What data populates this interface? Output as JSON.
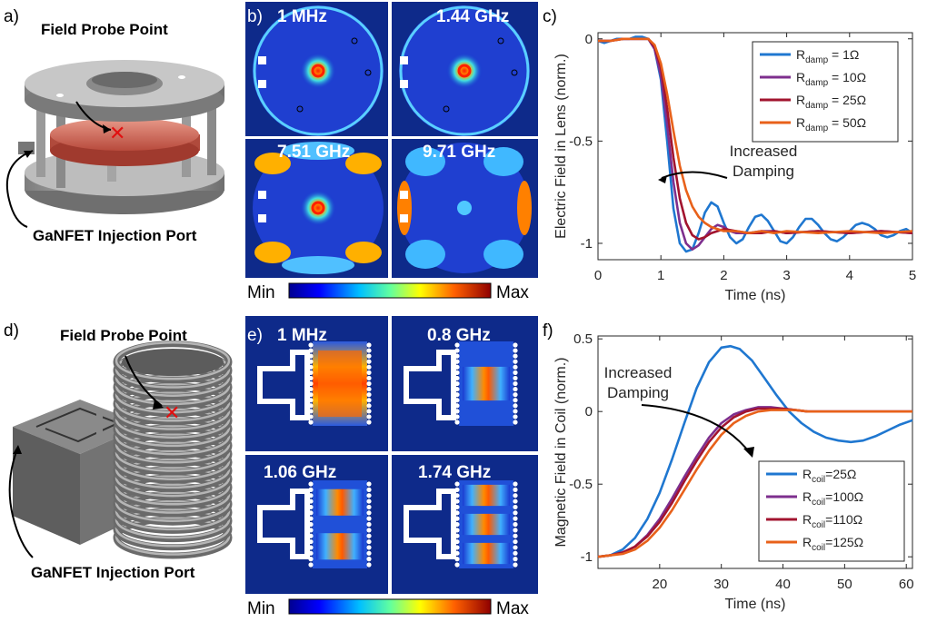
{
  "panels": {
    "a": {
      "letter": "a)",
      "probe_label": "Field Probe Point",
      "port_label": "GaNFET Injection Port"
    },
    "b": {
      "letter": "b)",
      "freqs": [
        "1 MHz",
        "1.44 GHz",
        "7.51 GHz",
        "9.71 GHz"
      ]
    },
    "d": {
      "letter": "d)",
      "probe_label": "Field Probe Point",
      "port_label": "GaNFET Injection Port"
    },
    "e": {
      "letter": "e)",
      "freqs": [
        "1 MHz",
        "0.8 GHz",
        "1.06 GHz",
        "1.74 GHz"
      ]
    },
    "c": {
      "letter": "c)"
    },
    "f": {
      "letter": "f)"
    }
  },
  "colorbar": {
    "min_label": "Min",
    "max_label": "Max"
  },
  "colors": {
    "blue": "#1f77d0",
    "purple": "#7e2f8e",
    "maroon": "#a2142f",
    "orange": "#e8611a"
  },
  "chart_data": [
    {
      "id": "c",
      "type": "line",
      "title": "",
      "xlabel": "Time (ns)",
      "ylabel": "Electric Field in Lens (norm.)",
      "xlim": [
        0,
        5
      ],
      "ylim": [
        -1.08,
        0.03
      ],
      "xticks": [
        0,
        1,
        2,
        3,
        4,
        5
      ],
      "yticks": [
        0,
        -0.5,
        -1
      ],
      "ytick_labels": [
        "0",
        "-0.5",
        "-1"
      ],
      "legend_position": "top-right",
      "annotation": [
        "Increased",
        "Damping"
      ],
      "series": [
        {
          "name": "R_damp = 1Ω",
          "label_main": "R",
          "label_sub": "damp",
          "label_tail": " = 1Ω",
          "color": "#1f77d0",
          "x": [
            0,
            0.1,
            0.2,
            0.3,
            0.4,
            0.5,
            0.6,
            0.7,
            0.8,
            0.9,
            1.0,
            1.1,
            1.2,
            1.3,
            1.4,
            1.5,
            1.6,
            1.7,
            1.8,
            1.9,
            2.0,
            2.1,
            2.2,
            2.3,
            2.4,
            2.5,
            2.6,
            2.7,
            2.8,
            2.9,
            3.0,
            3.1,
            3.2,
            3.3,
            3.4,
            3.5,
            3.6,
            3.7,
            3.8,
            3.9,
            4.0,
            4.1,
            4.2,
            4.3,
            4.4,
            4.5,
            4.6,
            4.7,
            4.8,
            4.9,
            5.0
          ],
          "y": [
            -0.01,
            -0.02,
            -0.01,
            0,
            0,
            0,
            0.01,
            0.01,
            0,
            -0.05,
            -0.2,
            -0.5,
            -0.83,
            -1.0,
            -1.04,
            -1.03,
            -0.95,
            -0.85,
            -0.8,
            -0.82,
            -0.9,
            -0.97,
            -1.0,
            -0.98,
            -0.92,
            -0.87,
            -0.86,
            -0.89,
            -0.94,
            -0.99,
            -1.0,
            -0.97,
            -0.92,
            -0.88,
            -0.88,
            -0.91,
            -0.95,
            -0.98,
            -0.99,
            -0.97,
            -0.94,
            -0.91,
            -0.9,
            -0.91,
            -0.93,
            -0.96,
            -0.97,
            -0.96,
            -0.94,
            -0.93,
            -0.95
          ]
        },
        {
          "name": "R_damp = 10Ω",
          "label_main": "R",
          "label_sub": "damp",
          "label_tail": " = 10Ω",
          "color": "#7e2f8e",
          "x": [
            0,
            0.2,
            0.4,
            0.6,
            0.7,
            0.8,
            0.9,
            1.0,
            1.1,
            1.2,
            1.3,
            1.4,
            1.5,
            1.6,
            1.7,
            1.8,
            1.9,
            2.0,
            2.1,
            2.2,
            2.4,
            2.6,
            2.8,
            3.0,
            3.5,
            4.0,
            4.5,
            5.0
          ],
          "y": [
            -0.01,
            -0.01,
            0,
            0,
            0,
            0,
            -0.05,
            -0.18,
            -0.42,
            -0.7,
            -0.9,
            -1.0,
            -1.03,
            -1.01,
            -0.97,
            -0.93,
            -0.91,
            -0.92,
            -0.94,
            -0.95,
            -0.95,
            -0.94,
            -0.94,
            -0.95,
            -0.94,
            -0.95,
            -0.94,
            -0.95
          ]
        },
        {
          "name": "R_damp = 25Ω",
          "label_main": "R",
          "label_sub": "damp",
          "label_tail": " = 25Ω",
          "color": "#a2142f",
          "x": [
            0,
            0.2,
            0.4,
            0.6,
            0.7,
            0.8,
            0.9,
            1.0,
            1.1,
            1.2,
            1.3,
            1.4,
            1.5,
            1.6,
            1.7,
            1.8,
            1.9,
            2.0,
            2.2,
            2.4,
            2.6,
            2.8,
            3.0,
            3.5,
            4.0,
            4.5,
            5.0
          ],
          "y": [
            -0.01,
            -0.01,
            0,
            0,
            0,
            0,
            -0.04,
            -0.14,
            -0.34,
            -0.58,
            -0.78,
            -0.9,
            -0.96,
            -0.98,
            -0.97,
            -0.95,
            -0.94,
            -0.93,
            -0.94,
            -0.95,
            -0.95,
            -0.94,
            -0.95,
            -0.94,
            -0.95,
            -0.94,
            -0.95
          ]
        },
        {
          "name": "R_damp = 50Ω",
          "label_main": "R",
          "label_sub": "damp",
          "label_tail": " = 50Ω",
          "color": "#e8611a",
          "x": [
            0,
            0.2,
            0.4,
            0.6,
            0.7,
            0.8,
            0.9,
            1.0,
            1.1,
            1.2,
            1.3,
            1.4,
            1.5,
            1.6,
            1.7,
            1.8,
            1.9,
            2.0,
            2.2,
            2.4,
            2.6,
            2.8,
            3.0,
            3.5,
            4.0,
            4.5,
            5.0
          ],
          "y": [
            -0.01,
            -0.01,
            0,
            0,
            0,
            0,
            -0.03,
            -0.12,
            -0.27,
            -0.45,
            -0.62,
            -0.74,
            -0.82,
            -0.87,
            -0.9,
            -0.92,
            -0.93,
            -0.94,
            -0.94,
            -0.95,
            -0.94,
            -0.95,
            -0.94,
            -0.95,
            -0.94,
            -0.95,
            -0.94
          ]
        }
      ]
    },
    {
      "id": "f",
      "type": "line",
      "title": "",
      "xlabel": "Time (ns)",
      "ylabel": "Magnetic Field in Coil (norm.)",
      "xlim": [
        10,
        61
      ],
      "ylim": [
        -1.08,
        0.52
      ],
      "xticks": [
        20,
        30,
        40,
        50,
        60
      ],
      "yticks": [
        0.5,
        0,
        -0.5,
        -1
      ],
      "ytick_labels": [
        "0.5",
        "0",
        "-0.5",
        "-1"
      ],
      "legend_position": "bottom-right",
      "annotation": [
        "Increased",
        "Damping"
      ],
      "series": [
        {
          "name": "R_coil=25Ω",
          "label_main": "R",
          "label_sub": "coil",
          "label_tail": "=25Ω",
          "color": "#1f77d0",
          "x": [
            10,
            12,
            14,
            16,
            18,
            20,
            22,
            24,
            26,
            28,
            30,
            31.5,
            33,
            35,
            37,
            39,
            41,
            43,
            45,
            47,
            49,
            51,
            53,
            55,
            57,
            59,
            61
          ],
          "y": [
            -1.0,
            -0.99,
            -0.95,
            -0.87,
            -0.74,
            -0.56,
            -0.33,
            -0.08,
            0.16,
            0.34,
            0.44,
            0.45,
            0.43,
            0.35,
            0.23,
            0.11,
            0.0,
            -0.08,
            -0.14,
            -0.18,
            -0.2,
            -0.21,
            -0.2,
            -0.17,
            -0.13,
            -0.09,
            -0.06
          ]
        },
        {
          "name": "R_coil=100Ω",
          "label_main": "R",
          "label_sub": "coil",
          "label_tail": "=100Ω",
          "color": "#7e2f8e",
          "x": [
            10,
            12,
            14,
            16,
            18,
            20,
            22,
            24,
            26,
            28,
            30,
            32,
            34,
            36,
            38,
            40,
            42,
            44,
            46,
            50,
            55,
            61
          ],
          "y": [
            -1.0,
            -0.99,
            -0.97,
            -0.93,
            -0.85,
            -0.74,
            -0.6,
            -0.45,
            -0.31,
            -0.18,
            -0.08,
            -0.02,
            0.01,
            0.03,
            0.03,
            0.02,
            0.01,
            0.0,
            0.0,
            0.0,
            0.0,
            0.0
          ]
        },
        {
          "name": "R_coil=110Ω",
          "label_main": "R",
          "label_sub": "coil",
          "label_tail": "=110Ω",
          "color": "#a2142f",
          "x": [
            10,
            12,
            14,
            16,
            18,
            20,
            22,
            24,
            26,
            28,
            30,
            32,
            34,
            36,
            38,
            40,
            42,
            44,
            46,
            50,
            55,
            61
          ],
          "y": [
            -1.0,
            -0.99,
            -0.97,
            -0.93,
            -0.86,
            -0.76,
            -0.63,
            -0.48,
            -0.34,
            -0.21,
            -0.11,
            -0.04,
            0.0,
            0.02,
            0.02,
            0.02,
            0.01,
            0.0,
            0.0,
            0.0,
            0.0,
            0.0
          ]
        },
        {
          "name": "R_coil=125Ω",
          "label_main": "R",
          "label_sub": "coil",
          "label_tail": "=125Ω",
          "color": "#e8611a",
          "x": [
            10,
            12,
            14,
            16,
            18,
            20,
            22,
            24,
            26,
            28,
            30,
            32,
            34,
            36,
            38,
            40,
            42,
            44,
            46,
            50,
            55,
            61
          ],
          "y": [
            -1.0,
            -0.99,
            -0.98,
            -0.95,
            -0.89,
            -0.8,
            -0.68,
            -0.54,
            -0.4,
            -0.27,
            -0.16,
            -0.08,
            -0.03,
            0.0,
            0.01,
            0.01,
            0.01,
            0.0,
            0.0,
            0.0,
            0.0,
            0.0
          ]
        }
      ]
    }
  ]
}
